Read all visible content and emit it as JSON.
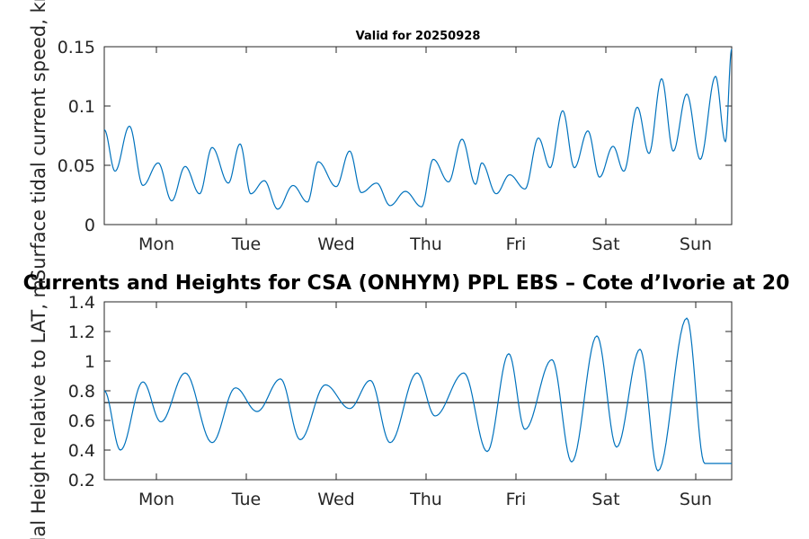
{
  "colors": {
    "series": "#0072bd",
    "axis": "#262626",
    "refline": "#333333"
  },
  "chart_data": [
    {
      "type": "line",
      "title": "Valid for 20250928",
      "ylabel": "Surface tidal current speed, kn",
      "xlabel": "",
      "x_tick_labels": [
        "Mon",
        "Tue",
        "Wed",
        "Thu",
        "Fri",
        "Sat",
        "Sun"
      ],
      "x_tick_positions": [
        0.5,
        1.5,
        2.5,
        3.5,
        4.5,
        5.5,
        6.5
      ],
      "xlim": [
        -0.08,
        6.9
      ],
      "ylim": [
        0,
        0.15
      ],
      "y_ticks": [
        0,
        0.05,
        0.1,
        0.15
      ],
      "y_tick_labels": [
        "0",
        "0.05",
        "0.1",
        "0.15"
      ],
      "series": [
        {
          "name": "Surface tidal current speed",
          "x": [
            -0.08,
            0.04,
            0.2,
            0.35,
            0.52,
            0.67,
            0.82,
            0.98,
            1.12,
            1.3,
            1.43,
            1.55,
            1.7,
            1.85,
            2.02,
            2.18,
            2.3,
            2.5,
            2.65,
            2.78,
            2.95,
            3.1,
            3.27,
            3.45,
            3.58,
            3.75,
            3.9,
            4.05,
            4.12,
            4.28,
            4.43,
            4.6,
            4.75,
            4.88,
            5.02,
            5.15,
            5.3,
            5.43,
            5.58,
            5.7,
            5.85,
            5.98,
            6.12,
            6.25,
            6.4,
            6.55,
            6.72,
            6.83,
            6.9
          ],
          "values": [
            0.08,
            0.045,
            0.083,
            0.033,
            0.052,
            0.02,
            0.049,
            0.026,
            0.065,
            0.035,
            0.068,
            0.026,
            0.037,
            0.013,
            0.033,
            0.019,
            0.053,
            0.032,
            0.062,
            0.027,
            0.035,
            0.016,
            0.028,
            0.015,
            0.055,
            0.036,
            0.072,
            0.034,
            0.052,
            0.026,
            0.042,
            0.03,
            0.073,
            0.048,
            0.096,
            0.048,
            0.079,
            0.04,
            0.066,
            0.045,
            0.099,
            0.06,
            0.123,
            0.062,
            0.11,
            0.055,
            0.125,
            0.07,
            0.148
          ]
        }
      ]
    },
    {
      "type": "line",
      "title": "Currents and Heights for CSA (ONHYM) PPL EBS  – Cote d’Ivorie at 20",
      "ylabel": "Tidal Height relative to LAT, m",
      "xlabel": "",
      "x_tick_labels": [
        "Mon",
        "Tue",
        "Wed",
        "Thu",
        "Fri",
        "Sat",
        "Sun"
      ],
      "x_tick_positions": [
        0.5,
        1.5,
        2.5,
        3.5,
        4.5,
        5.5,
        6.5
      ],
      "xlim": [
        -0.08,
        6.9
      ],
      "ylim": [
        0.2,
        1.4
      ],
      "y_ticks": [
        0.2,
        0.4,
        0.6,
        0.8,
        1,
        1.2,
        1.4
      ],
      "y_tick_labels": [
        "0.2",
        "0.4",
        "0.6",
        "0.8",
        "1",
        "1.2",
        "1.4"
      ],
      "reference_line": 0.72,
      "series": [
        {
          "name": "Tidal height",
          "x": [
            -0.08,
            0.1,
            0.35,
            0.55,
            0.82,
            1.12,
            1.38,
            1.62,
            1.88,
            2.1,
            2.38,
            2.65,
            2.88,
            3.1,
            3.4,
            3.6,
            3.92,
            4.18,
            4.42,
            4.6,
            4.9,
            5.12,
            5.4,
            5.62,
            5.88,
            6.08,
            6.4,
            6.6,
            6.9
          ],
          "values": [
            0.8,
            0.4,
            0.86,
            0.59,
            0.92,
            0.45,
            0.82,
            0.66,
            0.88,
            0.47,
            0.84,
            0.68,
            0.87,
            0.45,
            0.92,
            0.63,
            0.92,
            0.39,
            1.05,
            0.54,
            1.01,
            0.32,
            1.17,
            0.42,
            1.08,
            0.26,
            1.29,
            0.31,
            0.31
          ]
        }
      ]
    }
  ]
}
